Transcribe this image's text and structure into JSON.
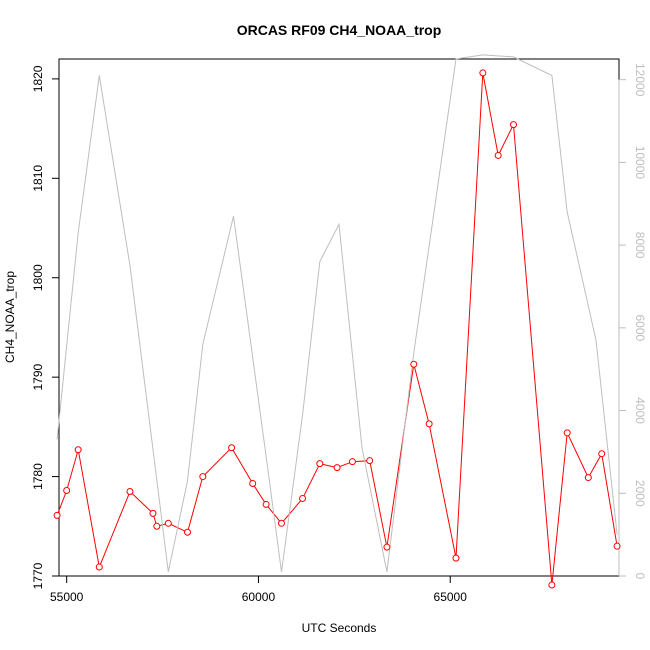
{
  "chart_data": {
    "type": "line",
    "title": "ORCAS RF09 CH4_NOAA_trop",
    "xlabel": "UTC Seconds",
    "ylabel": "CH4_NOAA_trop",
    "xlim": [
      54800,
      69400
    ],
    "ylim": [
      1770,
      1822
    ],
    "y2lim": [
      0,
      12500
    ],
    "x_ticks": [
      55000,
      60000,
      65000
    ],
    "y_ticks": [
      1770,
      1780,
      1790,
      1800,
      1810,
      1820
    ],
    "y2_ticks": [
      0,
      2000,
      4000,
      6000,
      8000,
      10000,
      12000
    ],
    "grid": false,
    "colors": {
      "primary": "#ff0000",
      "secondary": "#bebebe",
      "axis": "#000000"
    },
    "series": [
      {
        "axis": "left",
        "style": "line+open-circle",
        "color": "#ff0000",
        "points": [
          [
            54750,
            1776.1
          ],
          [
            55000,
            1778.6
          ],
          [
            55300,
            1782.7
          ],
          [
            55850,
            1770.9
          ],
          [
            56650,
            1778.5
          ],
          [
            57250,
            1776.3
          ],
          [
            57350,
            1775.0
          ],
          [
            57650,
            1775.3
          ],
          [
            58150,
            1774.4
          ],
          [
            58550,
            1780.0
          ],
          [
            59300,
            1782.9
          ],
          [
            59850,
            1779.3
          ],
          [
            60200,
            1777.2
          ],
          [
            60600,
            1775.3
          ],
          [
            61150,
            1777.8
          ],
          [
            61600,
            1781.3
          ],
          [
            62050,
            1780.9
          ],
          [
            62450,
            1781.5
          ],
          [
            62900,
            1781.6
          ],
          [
            63350,
            1772.9
          ],
          [
            64050,
            1791.3
          ],
          [
            64450,
            1785.3
          ],
          [
            65150,
            1771.8
          ],
          [
            65850,
            1820.6
          ],
          [
            66250,
            1812.3
          ],
          [
            66650,
            1815.4
          ],
          [
            67650,
            1769.1
          ],
          [
            68050,
            1784.4
          ],
          [
            68600,
            1779.9
          ],
          [
            68950,
            1782.3
          ],
          [
            69350,
            1773.0
          ]
        ]
      },
      {
        "axis": "right",
        "style": "line",
        "color": "#bebebe",
        "points": [
          [
            54750,
            3300
          ],
          [
            55300,
            8300
          ],
          [
            55850,
            12100
          ],
          [
            56650,
            7500
          ],
          [
            57650,
            100
          ],
          [
            58150,
            2300
          ],
          [
            58550,
            5600
          ],
          [
            59350,
            8700
          ],
          [
            60200,
            2900
          ],
          [
            60600,
            100
          ],
          [
            61150,
            3900
          ],
          [
            61600,
            7600
          ],
          [
            62100,
            8500
          ],
          [
            62700,
            3100
          ],
          [
            63350,
            100
          ],
          [
            64050,
            5400
          ],
          [
            65150,
            12500
          ],
          [
            65850,
            12600
          ],
          [
            66650,
            12550
          ],
          [
            67650,
            12100
          ],
          [
            68050,
            8800
          ],
          [
            68800,
            5700
          ],
          [
            69350,
            1000
          ]
        ]
      }
    ]
  }
}
